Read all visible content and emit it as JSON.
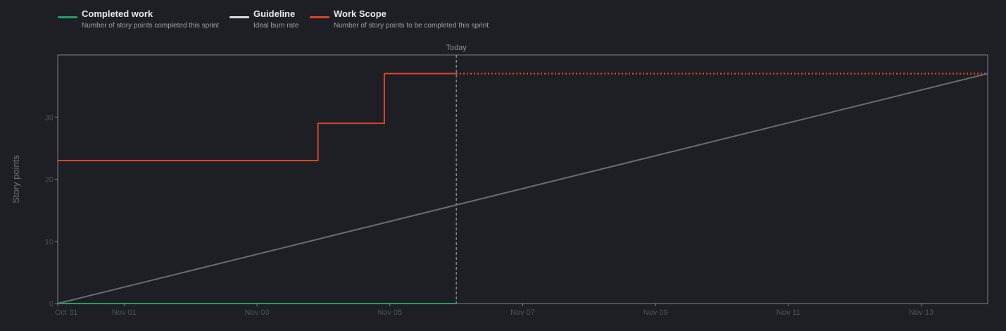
{
  "legend": [
    {
      "title": "Completed work",
      "description": "Number of story points completed this sprint",
      "color": "#1f9d6b"
    },
    {
      "title": "Guideline",
      "description": "Ideal burn rate",
      "color": "#d9dbe0"
    },
    {
      "title": "Work Scope",
      "description": "Number of story points to be completed this sprint",
      "color": "#d9452a"
    }
  ],
  "chart_data": {
    "type": "line",
    "ylabel": "Story points",
    "ylim": [
      0,
      40
    ],
    "yticks": [
      0,
      10,
      20,
      30
    ],
    "xlim": [
      "2023-10-31",
      "2023-11-14"
    ],
    "xtick_labels": [
      "Oct 31",
      "Nov 01",
      "Nov 03",
      "Nov 05",
      "Nov 07",
      "Nov 09",
      "Nov 11",
      "Nov 13"
    ],
    "xtick_dates": [
      "2023-10-31",
      "2023-11-01",
      "2023-11-03",
      "2023-11-05",
      "2023-11-07",
      "2023-11-09",
      "2023-11-11",
      "2023-11-13"
    ],
    "today_label": "Today",
    "today": "2023-11-06",
    "series": [
      {
        "name": "Work Scope",
        "color": "#d9452a",
        "step": true,
        "points": [
          [
            "2023-10-31T00:00",
            23
          ],
          [
            "2023-11-03T22:00",
            23
          ],
          [
            "2023-11-03T22:00",
            29
          ],
          [
            "2023-11-04T22:00",
            29
          ],
          [
            "2023-11-04T22:00",
            37
          ],
          [
            "2023-11-06T00:00",
            37
          ]
        ],
        "projection": [
          [
            "2023-11-06T00:00",
            37
          ],
          [
            "2023-11-14T00:00",
            37
          ]
        ]
      },
      {
        "name": "Guideline",
        "color": "#6a6c70",
        "points": [
          [
            "2023-10-31T00:00",
            0
          ],
          [
            "2023-11-14T00:00",
            37
          ]
        ]
      },
      {
        "name": "Completed work",
        "color": "#1f9d6b",
        "points": [
          [
            "2023-10-31T00:00",
            0
          ],
          [
            "2023-11-06T00:00",
            0
          ]
        ]
      }
    ],
    "grid": false,
    "legend_position": "top-left"
  }
}
